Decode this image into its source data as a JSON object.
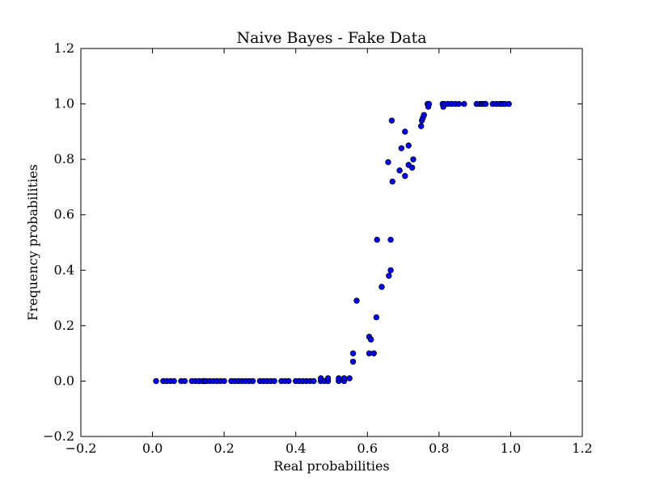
{
  "chart_data": {
    "type": "scatter",
    "title": "Naive Bayes - Fake Data",
    "xlabel": "Real probabilities",
    "ylabel": "Frequency probabilities",
    "xlim": [
      -0.2,
      1.2
    ],
    "ylim": [
      -0.2,
      1.2
    ],
    "xticks": [
      "−0.2",
      "0.0",
      "0.2",
      "0.4",
      "0.6",
      "0.8",
      "1.0",
      "1.2"
    ],
    "yticks": [
      "−0.2",
      "0.0",
      "0.2",
      "0.4",
      "0.6",
      "0.8",
      "1.0",
      "1.2"
    ],
    "grid": false,
    "marker_color": "#0000ff",
    "marker_edge": "#000000",
    "series": [
      {
        "points": [
          [
            0.01,
            0.0
          ],
          [
            0.03,
            0.0
          ],
          [
            0.04,
            0.0
          ],
          [
            0.05,
            0.0
          ],
          [
            0.06,
            0.0
          ],
          [
            0.08,
            0.0
          ],
          [
            0.09,
            0.0
          ],
          [
            0.11,
            0.0
          ],
          [
            0.12,
            0.0
          ],
          [
            0.13,
            0.0
          ],
          [
            0.14,
            0.0
          ],
          [
            0.145,
            0.0
          ],
          [
            0.15,
            0.0
          ],
          [
            0.16,
            0.0
          ],
          [
            0.17,
            0.0
          ],
          [
            0.18,
            0.0
          ],
          [
            0.19,
            0.0
          ],
          [
            0.2,
            0.0
          ],
          [
            0.22,
            0.0
          ],
          [
            0.23,
            0.0
          ],
          [
            0.24,
            0.0
          ],
          [
            0.25,
            0.0
          ],
          [
            0.26,
            0.0
          ],
          [
            0.27,
            0.0
          ],
          [
            0.28,
            0.0
          ],
          [
            0.3,
            0.0
          ],
          [
            0.31,
            0.0
          ],
          [
            0.32,
            0.0
          ],
          [
            0.33,
            0.0
          ],
          [
            0.34,
            0.0
          ],
          [
            0.36,
            0.0
          ],
          [
            0.37,
            0.0
          ],
          [
            0.38,
            0.0
          ],
          [
            0.4,
            0.0
          ],
          [
            0.41,
            0.0
          ],
          [
            0.42,
            0.0
          ],
          [
            0.43,
            0.0
          ],
          [
            0.44,
            0.0
          ],
          [
            0.45,
            0.0
          ],
          [
            0.47,
            0.0
          ],
          [
            0.47,
            0.01
          ],
          [
            0.48,
            0.0
          ],
          [
            0.49,
            0.0
          ],
          [
            0.49,
            0.01
          ],
          [
            0.52,
            0.0
          ],
          [
            0.52,
            0.01
          ],
          [
            0.535,
            0.0
          ],
          [
            0.535,
            0.01
          ],
          [
            0.55,
            0.01
          ],
          [
            0.56,
            0.07
          ],
          [
            0.56,
            0.1
          ],
          [
            0.57,
            0.29
          ],
          [
            0.605,
            0.16
          ],
          [
            0.605,
            0.1
          ],
          [
            0.61,
            0.15
          ],
          [
            0.618,
            0.1
          ],
          [
            0.625,
            0.23
          ],
          [
            0.627,
            0.51
          ],
          [
            0.64,
            0.34
          ],
          [
            0.658,
            0.79
          ],
          [
            0.66,
            0.38
          ],
          [
            0.665,
            0.4
          ],
          [
            0.665,
            0.51
          ],
          [
            0.668,
            0.94
          ],
          [
            0.67,
            0.72
          ],
          [
            0.69,
            0.76
          ],
          [
            0.695,
            0.84
          ],
          [
            0.705,
            0.9
          ],
          [
            0.705,
            0.74
          ],
          [
            0.715,
            0.85
          ],
          [
            0.715,
            0.78
          ],
          [
            0.725,
            0.77
          ],
          [
            0.728,
            0.8
          ],
          [
            0.75,
            0.92
          ],
          [
            0.752,
            0.94
          ],
          [
            0.755,
            0.95
          ],
          [
            0.758,
            0.96
          ],
          [
            0.768,
            1.0
          ],
          [
            0.77,
            0.99
          ],
          [
            0.772,
            1.0
          ],
          [
            0.81,
            1.0
          ],
          [
            0.812,
            0.99
          ],
          [
            0.815,
            1.0
          ],
          [
            0.825,
            1.0
          ],
          [
            0.835,
            1.0
          ],
          [
            0.845,
            1.0
          ],
          [
            0.855,
            1.0
          ],
          [
            0.87,
            1.0
          ],
          [
            0.905,
            1.0
          ],
          [
            0.915,
            1.0
          ],
          [
            0.92,
            1.0
          ],
          [
            0.925,
            1.0
          ],
          [
            0.93,
            1.0
          ],
          [
            0.95,
            1.0
          ],
          [
            0.96,
            1.0
          ],
          [
            0.97,
            1.0
          ],
          [
            0.975,
            1.0
          ],
          [
            0.98,
            1.0
          ],
          [
            0.985,
            1.0
          ],
          [
            0.995,
            1.0
          ]
        ]
      }
    ]
  }
}
